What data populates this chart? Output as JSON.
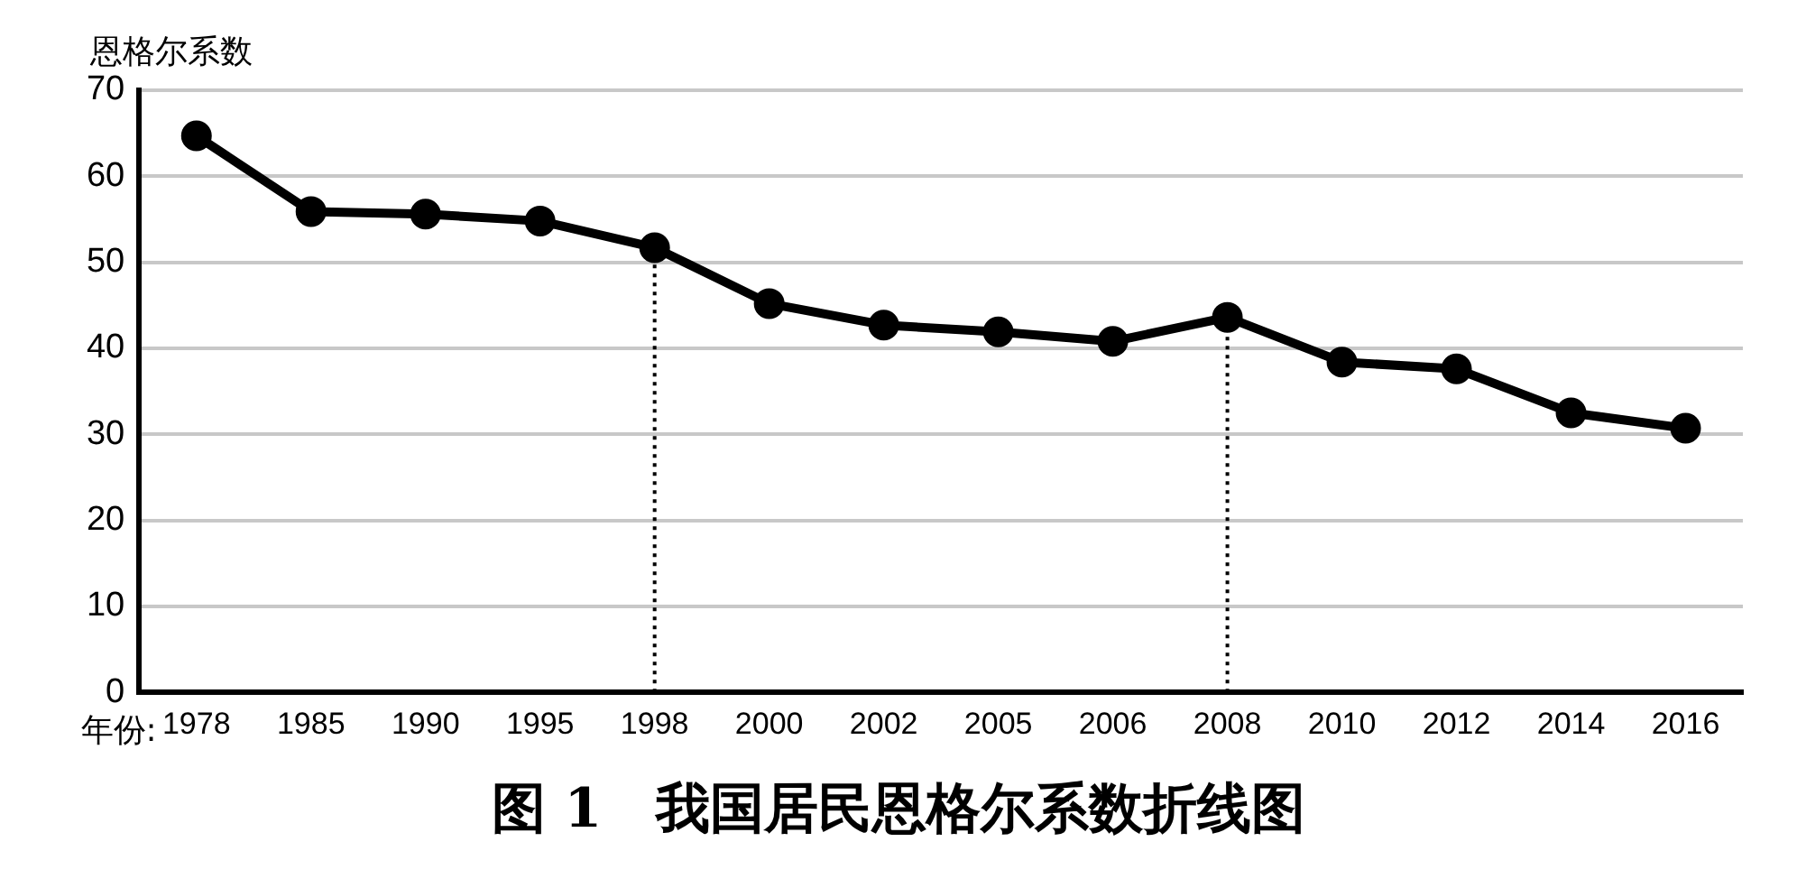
{
  "chart_data": {
    "type": "line",
    "title": "图 1　我国居民恩格尔系数折线图",
    "xlabel": "年份:",
    "ylabel": "恩格尔系数",
    "categories": [
      "1978",
      "1985",
      "1990",
      "1995",
      "1998",
      "2000",
      "2002",
      "2005",
      "2006",
      "2008",
      "2010",
      "2012",
      "2014",
      "2016"
    ],
    "series": [
      {
        "color": "#000000",
        "values": [
          64.7,
          55.9,
          55.6,
          54.8,
          51.7,
          45.2,
          42.7,
          41.9,
          40.8,
          43.6,
          38.4,
          37.6,
          32.5,
          30.7
        ]
      }
    ],
    "ylim": [
      0,
      70
    ],
    "yticks": [
      0,
      10,
      20,
      30,
      40,
      50,
      60,
      70
    ],
    "grid": "y",
    "legend": false,
    "marker": "circle",
    "line_style": "solid",
    "ref_lines": [
      {
        "axis": "x",
        "value": "1998",
        "line_style": "dotted",
        "color": "#000000"
      },
      {
        "axis": "x",
        "value": "2008",
        "line_style": "dotted",
        "color": "#000000"
      }
    ]
  }
}
